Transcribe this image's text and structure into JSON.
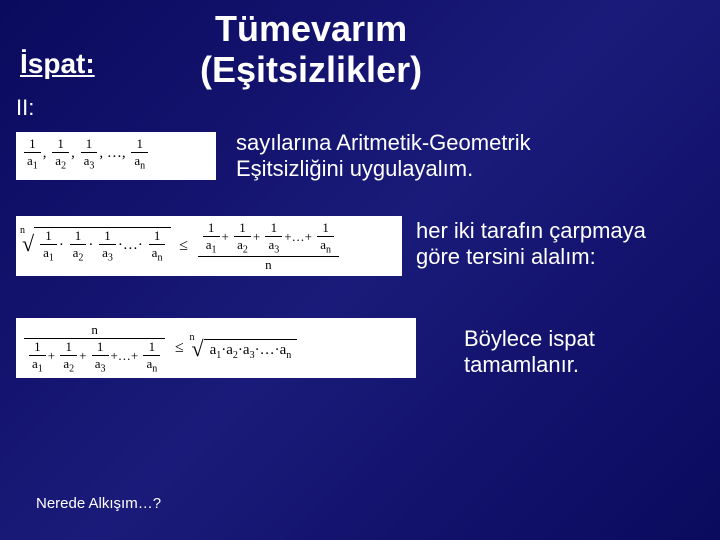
{
  "title_line1": "Tümevarım",
  "title_line2": "(Eşitsizlikler)",
  "ispat_label": "İspat:",
  "roman_label": "II:",
  "text1_line1": "sayılarına Aritmetik-Geometrik",
  "text1_line2": "Eşitsizliğini uygulayalım.",
  "text2_line1": "her iki tarafın çarpmaya",
  "text2_line2": "göre tersini alalım:",
  "text3_line1": "Böylece ispat",
  "text3_line2": "tamamlanır.",
  "footer": "Nerede Alkışım…?",
  "formula1": {
    "terms": [
      "a₁",
      "a₂",
      "a₃",
      "…",
      "aₙ"
    ]
  },
  "formula2": {
    "left_root_index": "n",
    "left_product": [
      "a₁",
      "a₂",
      "a₃",
      "…",
      "aₙ"
    ],
    "right_sum": [
      "a₁",
      "a₂",
      "a₃",
      "…",
      "aₙ"
    ],
    "right_denom": "n"
  },
  "formula3": {
    "left_num": "n",
    "left_denom_sum": [
      "a₁",
      "a₂",
      "a₃",
      "…",
      "aₙ"
    ],
    "right_root_index": "n",
    "right_product": [
      "a₁",
      "a₂",
      "a₃",
      "…",
      "aₙ"
    ]
  },
  "colors": {
    "bg_start": "#0a0a5e",
    "bg_mid": "#1a1a7a",
    "text": "#ffffff",
    "formula_bg": "#ffffff",
    "formula_text": "#000000"
  }
}
